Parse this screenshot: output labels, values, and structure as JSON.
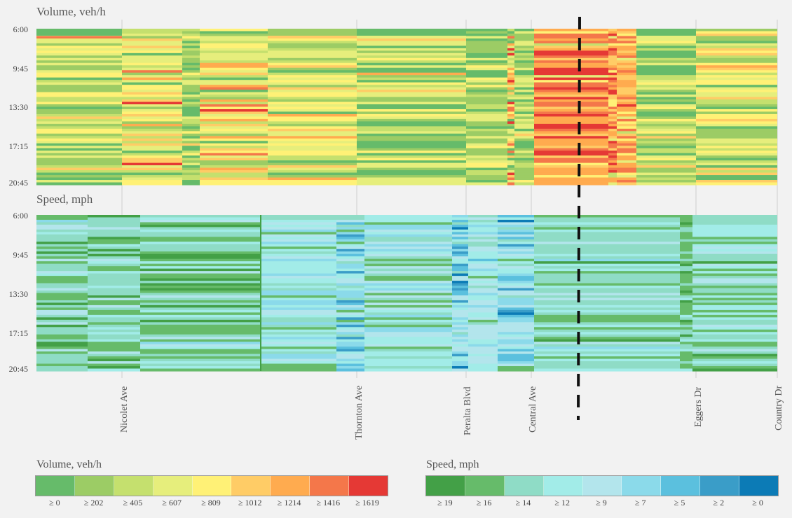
{
  "chart_data": [
    {
      "type": "heatmap",
      "title": "Volume, veh/h",
      "y_ticks": [
        "6:00",
        "9:45",
        "13:30",
        "17:15",
        "20:45"
      ],
      "colors": [
        "#66bb6a",
        "#9ccc65",
        "#c5e06e",
        "#e6ee7c",
        "#fff176",
        "#ffcc66",
        "#ffab4f",
        "#f4774a",
        "#e53935"
      ],
      "thresholds": [
        "≥ 0",
        "≥ 202",
        "≥ 405",
        "≥ 607",
        "≥ 809",
        "≥ 1012",
        "≥ 1214",
        "≥ 1416",
        "≥ 1619"
      ]
    },
    {
      "type": "heatmap",
      "title": "Speed, mph",
      "y_ticks": [
        "6:00",
        "9:45",
        "13:30",
        "17:15",
        "20:45"
      ],
      "colors": [
        "#43a047",
        "#66bb6a",
        "#8fdcc6",
        "#a2ece8",
        "#b3e5ec",
        "#8bdaea",
        "#5bc0de",
        "#3a9dc8",
        "#0c7bb6"
      ],
      "thresholds": [
        "≥ 19",
        "≥ 16",
        "≥ 14",
        "≥ 12",
        "≥ 9",
        "≥ 7",
        "≥ 5",
        "≥ 2",
        "≥ 0"
      ]
    }
  ],
  "streets": [
    {
      "name": "Nicolet Ave"
    },
    {
      "name": "Thornton Ave"
    },
    {
      "name": "Peralta Blvd"
    },
    {
      "name": "Central Ave"
    },
    {
      "name": "Eggers Dr"
    },
    {
      "name": "Country Dr"
    }
  ],
  "legend": {
    "volume_title": "Volume, veh/h",
    "speed_title": "Speed, mph"
  }
}
